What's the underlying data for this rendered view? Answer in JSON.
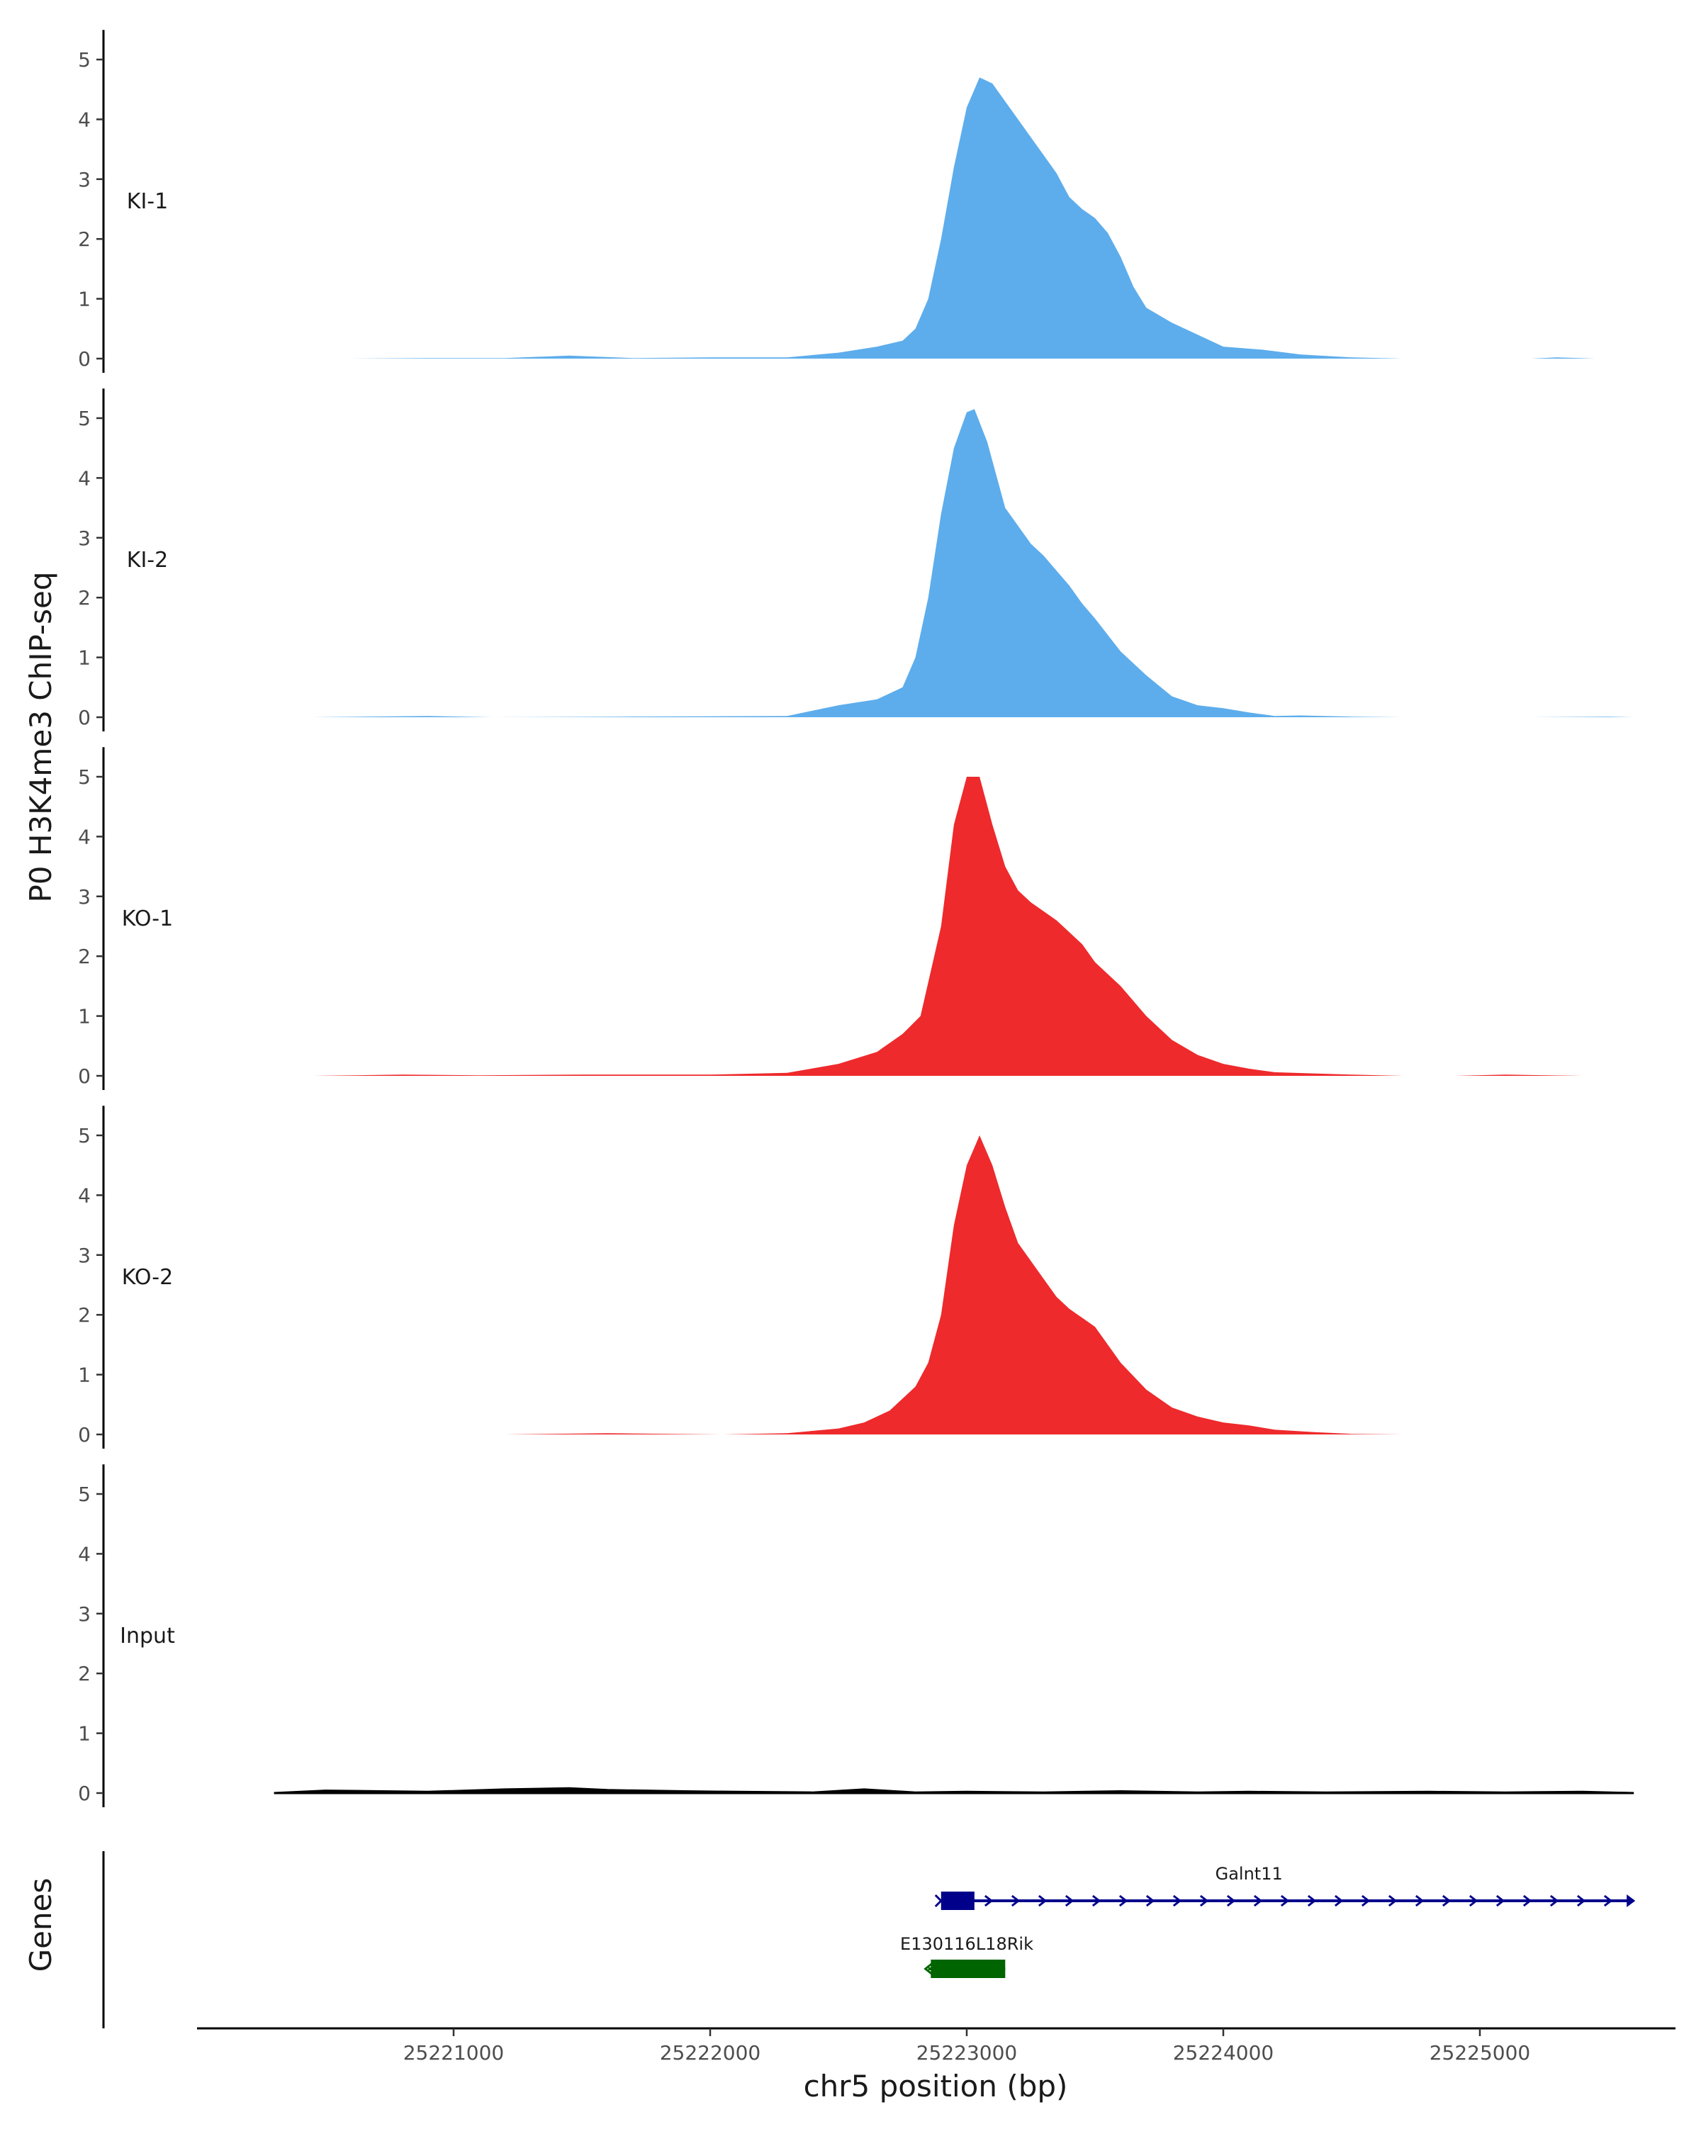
{
  "chart_data": {
    "type": "area",
    "ylabel": "P0 H3K4me3 ChIP-seq",
    "xlabel": "chr5 position (bp)",
    "xlim": [
      25220000,
      25225800
    ],
    "ylim": [
      0,
      5.4
    ],
    "yticks": [
      0,
      1,
      2,
      3,
      4,
      5
    ],
    "xticks": [
      25221000,
      25222000,
      25223000,
      25224000,
      25225000
    ],
    "tracks": [
      {
        "name": "KI-1",
        "color": "#5DADEC",
        "x": [
          25220600,
          25220900,
          25221200,
          25221450,
          25221700,
          25222000,
          25222300,
          25222500,
          25222650,
          25222750,
          25222800,
          25222850,
          25222900,
          25222950,
          25223000,
          25223050,
          25223100,
          25223150,
          25223200,
          25223250,
          25223300,
          25223350,
          25223400,
          25223450,
          25223500,
          25223550,
          25223600,
          25223650,
          25223700,
          25223800,
          25223900,
          25224000,
          25224150,
          25224300,
          25224500,
          25224700
        ],
        "values": [
          0,
          0.01,
          0.01,
          0.05,
          0.01,
          0.02,
          0.02,
          0.1,
          0.2,
          0.3,
          0.5,
          1.0,
          2.0,
          3.2,
          4.2,
          4.7,
          4.6,
          4.3,
          4.0,
          3.7,
          3.4,
          3.1,
          2.7,
          2.5,
          2.35,
          2.1,
          1.7,
          1.2,
          0.85,
          0.6,
          0.4,
          0.2,
          0.15,
          0.07,
          0.02,
          0
        ],
        "x2": [
          25225200,
          25225300,
          25225450
        ],
        "values2": [
          0,
          0.02,
          0
        ]
      },
      {
        "name": "KI-2",
        "color": "#5DADEC",
        "x": [
          25220450,
          25220900,
          25221150,
          25221650,
          25222300,
          25222500,
          25222650,
          25222750,
          25222800,
          25222850,
          25222900,
          25222950,
          25223000,
          25223030,
          25223080,
          25223150,
          25223200,
          25223250,
          25223300,
          25223350,
          25223400,
          25223450,
          25223500,
          25223600,
          25223700,
          25223800,
          25223900,
          25224000,
          25224100,
          25224200,
          25224300,
          25224500,
          25224700
        ],
        "values": [
          0,
          0.02,
          0,
          0.01,
          0.02,
          0.2,
          0.3,
          0.5,
          1.0,
          2.0,
          3.4,
          4.5,
          5.1,
          5.15,
          4.6,
          3.5,
          3.2,
          2.9,
          2.7,
          2.45,
          2.2,
          1.9,
          1.65,
          1.1,
          0.7,
          0.35,
          0.2,
          0.15,
          0.08,
          0.02,
          0.03,
          0.01,
          0
        ],
        "x2": [
          25225200,
          25225500,
          25225600
        ],
        "values2": [
          0,
          0.01,
          0
        ]
      },
      {
        "name": "KO-1",
        "color": "#EE2A2C",
        "x": [
          25220450,
          25220800,
          25221100,
          25221500,
          25222000,
          25222300,
          25222500,
          25222650,
          25222750,
          25222820,
          25222900,
          25222950,
          25223000,
          25223050,
          25223100,
          25223150,
          25223200,
          25223250,
          25223300,
          25223350,
          25223400,
          25223450,
          25223500,
          25223600,
          25223700,
          25223800,
          25223900,
          25224000,
          25224100,
          25224200,
          25224350,
          25224500,
          25224700
        ],
        "values": [
          0,
          0.02,
          0.01,
          0.02,
          0.02,
          0.05,
          0.2,
          0.4,
          0.7,
          1.0,
          2.5,
          4.2,
          5.0,
          5.0,
          4.2,
          3.5,
          3.1,
          2.9,
          2.75,
          2.6,
          2.4,
          2.2,
          1.9,
          1.5,
          1.0,
          0.6,
          0.35,
          0.2,
          0.12,
          0.06,
          0.04,
          0.02,
          0
        ],
        "x2": [
          25224900,
          25225100,
          25225400
        ],
        "values2": [
          0,
          0.02,
          0
        ]
      },
      {
        "name": "KO-2",
        "color": "#EE2A2C",
        "x": [
          25220300,
          25220900,
          25221200,
          25221600,
          25222050,
          25222300,
          25222500,
          25222600,
          25222700,
          25222800,
          25222850,
          25222900,
          25222950,
          25223000,
          25223050,
          25223100,
          25223150,
          25223200,
          25223250,
          25223300,
          25223350,
          25223400,
          25223450,
          25223500,
          25223600,
          25223700,
          25223800,
          25223900,
          25224000,
          25224100,
          25224200,
          25224350,
          25224500,
          25224700
        ],
        "values": [
          0,
          0,
          0,
          0.02,
          0,
          0.02,
          0.1,
          0.2,
          0.4,
          0.8,
          1.2,
          2.0,
          3.5,
          4.5,
          5.0,
          4.5,
          3.8,
          3.2,
          2.9,
          2.6,
          2.3,
          2.1,
          1.95,
          1.8,
          1.2,
          0.75,
          0.45,
          0.3,
          0.2,
          0.15,
          0.08,
          0.04,
          0.01,
          0
        ],
        "x2": [],
        "values2": []
      },
      {
        "name": "Input",
        "color": "#000000",
        "x": [
          25220300,
          25220500,
          25220900,
          25221200,
          25221450,
          25221600,
          25221900,
          25222100,
          25222400,
          25222600,
          25222800,
          25223000,
          25223300,
          25223600,
          25223900,
          25224100,
          25224400,
          25224800,
          25225100,
          25225400,
          25225600
        ],
        "values": [
          0,
          0.04,
          0.02,
          0.06,
          0.08,
          0.05,
          0.03,
          0.02,
          0.01,
          0.06,
          0.01,
          0.02,
          0.01,
          0.03,
          0.01,
          0.02,
          0.01,
          0.02,
          0.01,
          0.02,
          0
        ],
        "x2": [],
        "values2": []
      }
    ],
    "genes_track": {
      "label": "Genes",
      "genes": [
        {
          "name": "Galnt11",
          "start": 25222900,
          "end": 25225600,
          "strand": "+",
          "exon_start": 25222900,
          "exon_end": 25223030,
          "color": "#00008B"
        },
        {
          "name": "E130116L18Rik",
          "start": 25222850,
          "end": 25223150,
          "strand": "-",
          "exon_start": 25222860,
          "exon_end": 25223150,
          "color": "#006400"
        }
      ]
    }
  }
}
